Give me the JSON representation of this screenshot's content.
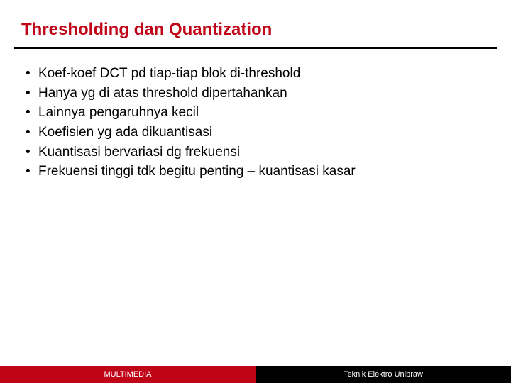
{
  "slide": {
    "title": "Thresholding dan Quantization",
    "title_color": "#c00418",
    "title_fontsize": 24,
    "underline_color": "#000000",
    "bullets": [
      "Koef-koef DCT pd tiap-tiap blok  di-threshold",
      "Hanya yg di atas threshold dipertahankan",
      "Lainnya pengaruhnya kecil",
      "Koefisien yg ada dikuantisasi",
      "Kuantisasi bervariasi dg frekuensi",
      "Frekuensi tinggi tdk begitu penting – kuantisasi kasar"
    ],
    "bullet_marker": "•",
    "bullet_fontsize": 19,
    "bullet_color": "#000000",
    "body_font": "Tahoma, Verdana, sans-serif"
  },
  "footer": {
    "left_label": "MULTIMEDIA",
    "right_label": "Teknik Elektro Unibraw",
    "left_bg": "#c00418",
    "right_bg": "#000000",
    "left_color": "#ffffff",
    "right_color": "#ffffff",
    "left_fontsize": 11,
    "right_fontsize": 11
  },
  "layout": {
    "background": "#ffffff"
  }
}
